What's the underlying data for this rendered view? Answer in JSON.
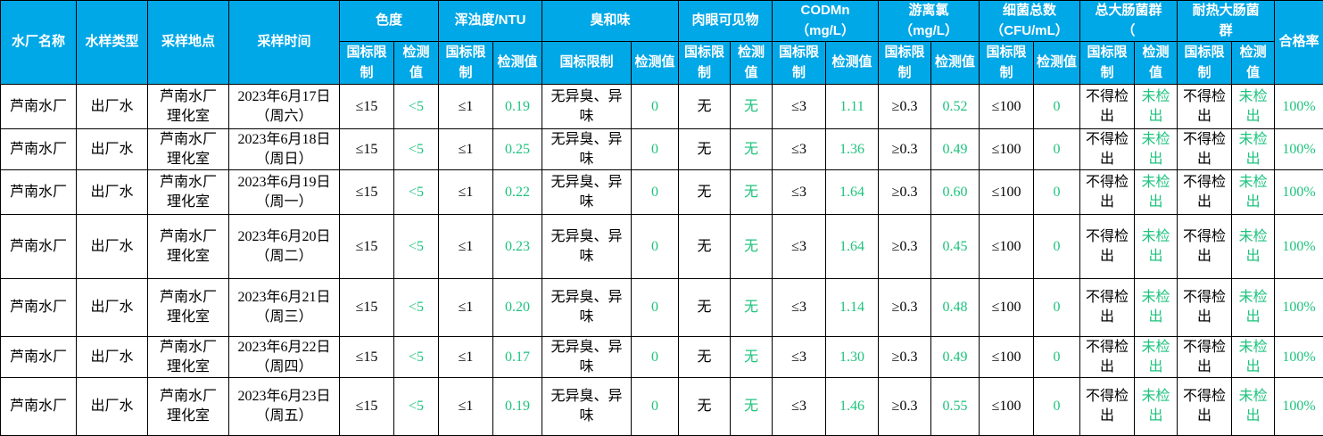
{
  "table": {
    "header": {
      "plant": "水厂名称",
      "sample_type": "水样类型",
      "location": "采样地点",
      "time": "采样时间",
      "limit": "国标限制",
      "value": "检测值",
      "pass_rate": "合格率",
      "groups": [
        {
          "label": "色度"
        },
        {
          "label": "浑浊度/NTU"
        },
        {
          "label": "臭和味"
        },
        {
          "label": "肉眼可见物"
        },
        {
          "label": "CODMn\n（mg/L）"
        },
        {
          "label": "游离氯\n（mg/L）"
        },
        {
          "label": "细菌总数\n（CFU/mL）"
        },
        {
          "label": "总大肠菌群\n（"
        },
        {
          "label": "耐热大肠菌\n群"
        }
      ]
    },
    "rows": [
      {
        "plant": "芦南水厂",
        "type": "出厂水",
        "location": "芦南水厂\n理化室",
        "time": "2023年6月17日\n（周六）",
        "chroma_limit": "≤15",
        "chroma_value": "<5",
        "turbidity_limit": "≤1",
        "turbidity_value": "0.19",
        "odor_limit": "无异臭、异味",
        "odor_value": "0",
        "visible_limit": "无",
        "visible_value": "无",
        "codmn_limit": "≤3",
        "codmn_value": "1.11",
        "chlorine_limit": "≥0.3",
        "chlorine_value": "0.52",
        "bacteria_limit": "≤100",
        "bacteria_value": "0",
        "coliform_limit": "不得检出",
        "coliform_value": "未检出",
        "thermo_limit": "不得检出",
        "thermo_value": "未检出",
        "pass_rate": "100%"
      },
      {
        "plant": "芦南水厂",
        "type": "出厂水",
        "location": "芦南水厂\n理化室",
        "time": "2023年6月18日\n（周日）",
        "chroma_limit": "≤15",
        "chroma_value": "<5",
        "turbidity_limit": "≤1",
        "turbidity_value": "0.25",
        "odor_limit": "无异臭、异味",
        "odor_value": "0",
        "visible_limit": "无",
        "visible_value": "无",
        "codmn_limit": "≤3",
        "codmn_value": "1.36",
        "chlorine_limit": "≥0.3",
        "chlorine_value": "0.49",
        "bacteria_limit": "≤100",
        "bacteria_value": "0",
        "coliform_limit": "不得检出",
        "coliform_value": "未检出",
        "thermo_limit": "不得检出",
        "thermo_value": "未检出",
        "pass_rate": "100%"
      },
      {
        "plant": "芦南水厂",
        "type": "出厂水",
        "location": "芦南水厂\n理化室",
        "time": "2023年6月19日\n（周一）",
        "chroma_limit": "≤15",
        "chroma_value": "<5",
        "turbidity_limit": "≤1",
        "turbidity_value": "0.22",
        "odor_limit": "无异臭、异味",
        "odor_value": "0",
        "visible_limit": "无",
        "visible_value": "无",
        "codmn_limit": "≤3",
        "codmn_value": "1.64",
        "chlorine_limit": "≥0.3",
        "chlorine_value": "0.60",
        "bacteria_limit": "≤100",
        "bacteria_value": "0",
        "coliform_limit": "不得检出",
        "coliform_value": "未检出",
        "thermo_limit": "不得检出",
        "thermo_value": "未检出",
        "pass_rate": "100%"
      },
      {
        "plant": "芦南水厂",
        "type": "出厂水",
        "location": "芦南水厂\n理化室",
        "time": "2023年6月20日\n（周二）",
        "chroma_limit": "≤15",
        "chroma_value": "<5",
        "turbidity_limit": "≤1",
        "turbidity_value": "0.23",
        "odor_limit": "无异臭、异味",
        "odor_value": "0",
        "visible_limit": "无",
        "visible_value": "无",
        "codmn_limit": "≤3",
        "codmn_value": "1.64",
        "chlorine_limit": "≥0.3",
        "chlorine_value": "0.45",
        "bacteria_limit": "≤100",
        "bacteria_value": "0",
        "coliform_limit": "不得检出",
        "coliform_value": "未检出",
        "thermo_limit": "不得检出",
        "thermo_value": "未检出",
        "pass_rate": "100%"
      },
      {
        "plant": "芦南水厂",
        "type": "出厂水",
        "location": "芦南水厂\n理化室",
        "time": "2023年6月21日\n（周三）",
        "chroma_limit": "≤15",
        "chroma_value": "<5",
        "turbidity_limit": "≤1",
        "turbidity_value": "0.20",
        "odor_limit": "无异臭、异味",
        "odor_value": "0",
        "visible_limit": "无",
        "visible_value": "无",
        "codmn_limit": "≤3",
        "codmn_value": "1.14",
        "chlorine_limit": "≥0.3",
        "chlorine_value": "0.48",
        "bacteria_limit": "≤100",
        "bacteria_value": "0",
        "coliform_limit": "不得检出",
        "coliform_value": "未检出",
        "thermo_limit": "不得检出",
        "thermo_value": "未检出",
        "pass_rate": "100%"
      },
      {
        "plant": "芦南水厂",
        "type": "出厂水",
        "location": "芦南水厂\n理化室",
        "time": "2023年6月22日\n（周四）",
        "chroma_limit": "≤15",
        "chroma_value": "<5",
        "turbidity_limit": "≤1",
        "turbidity_value": "0.17",
        "odor_limit": "无异臭、异味",
        "odor_value": "0",
        "visible_limit": "无",
        "visible_value": "无",
        "codmn_limit": "≤3",
        "codmn_value": "1.30",
        "chlorine_limit": "≥0.3",
        "chlorine_value": "0.49",
        "bacteria_limit": "≤100",
        "bacteria_value": "0",
        "coliform_limit": "不得检出",
        "coliform_value": "未检出",
        "thermo_limit": "不得检出",
        "thermo_value": "未检出",
        "pass_rate": "100%"
      },
      {
        "plant": "芦南水厂",
        "type": "出厂水",
        "location": "芦南水厂\n理化室",
        "time": "2023年6月23日\n（周五）",
        "chroma_limit": "≤15",
        "chroma_value": "<5",
        "turbidity_limit": "≤1",
        "turbidity_value": "0.19",
        "odor_limit": "无异臭、异味",
        "odor_value": "0",
        "visible_limit": "无",
        "visible_value": "无",
        "codmn_limit": "≤3",
        "codmn_value": "1.46",
        "chlorine_limit": "≥0.3",
        "chlorine_value": "0.55",
        "bacteria_limit": "≤100",
        "bacteria_value": "0",
        "coliform_limit": "不得检出",
        "coliform_value": "未检出",
        "thermo_limit": "不得检出",
        "thermo_value": "未检出",
        "pass_rate": "100%"
      }
    ]
  },
  "colors": {
    "header_bg": "#00A8E8",
    "header_text": "#FFFFFF",
    "value_green": "#1EC37D",
    "grid": "#000000"
  }
}
